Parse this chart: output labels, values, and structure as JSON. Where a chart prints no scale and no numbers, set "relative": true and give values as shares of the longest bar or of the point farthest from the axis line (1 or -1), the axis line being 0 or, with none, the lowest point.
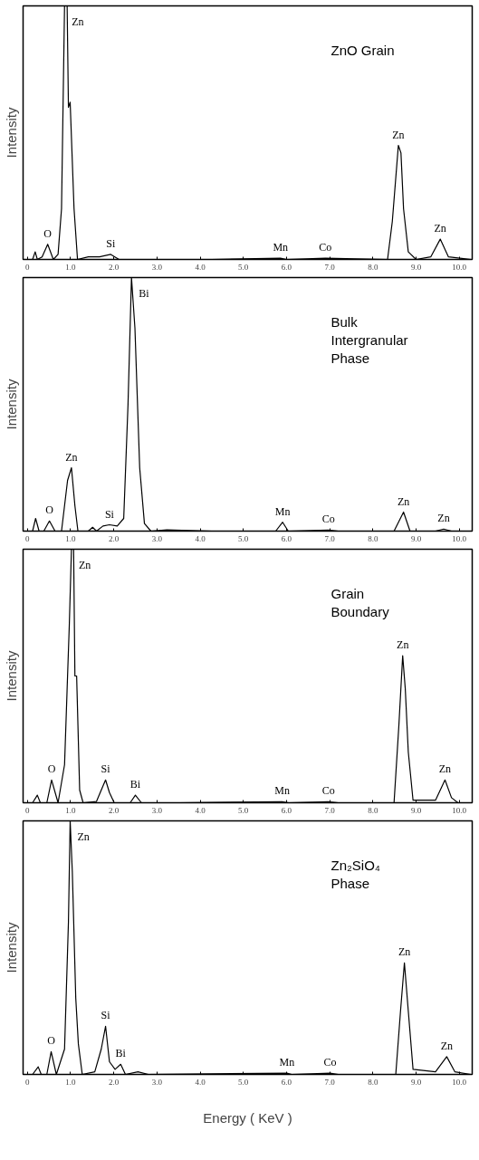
{
  "chart_data": [
    {
      "type": "line",
      "title": "ZnO Grain",
      "ylabel": "Intensity",
      "relative": true,
      "xlim": [
        -0.1,
        10.3
      ],
      "xticks": [
        {
          "value": 0,
          "label": "0"
        },
        {
          "value": 1,
          "label": "1.0"
        },
        {
          "value": 2,
          "label": "2.0"
        },
        {
          "value": 3,
          "label": "3.0"
        },
        {
          "value": 4,
          "label": "4.0"
        },
        {
          "value": 5,
          "label": "5.0"
        },
        {
          "value": 6,
          "label": "6.0"
        },
        {
          "value": 7,
          "label": "7.0"
        },
        {
          "value": 8,
          "label": "8.0"
        },
        {
          "value": 9,
          "label": "9.0"
        },
        {
          "value": 10,
          "label": "10.0"
        }
      ],
      "x": [
        0.12,
        0.18,
        0.23,
        0.34,
        0.47,
        0.6,
        0.71,
        0.79,
        0.86,
        0.92,
        0.95,
        0.99,
        1.08,
        1.16,
        1.41,
        1.67,
        1.93,
        2.12,
        4.27,
        5.86,
        6.0,
        6.9,
        8.34,
        8.45,
        8.59,
        8.65,
        8.71,
        8.82,
        9.0,
        9.34,
        9.56,
        9.75,
        10.27
      ],
      "series": [
        {
          "color": "#000000",
          "values": [
            0,
            0.03,
            0,
            0.01,
            0.06,
            0,
            0.02,
            0.2,
            1,
            1,
            0.6,
            0.62,
            0.2,
            0,
            0.01,
            0.01,
            0.02,
            0,
            0,
            0.005,
            0,
            0.005,
            0,
            0.15,
            0.45,
            0.42,
            0.2,
            0.03,
            0,
            0.01,
            0.08,
            0.01,
            0
          ]
        }
      ],
      "annotations": [
        {
          "text": "O",
          "x": 0.47,
          "y": 0.06
        },
        {
          "text": "Zn",
          "x": 0.86,
          "y": 1
        },
        {
          "text": "Si",
          "x": 1.93,
          "y": 0.02
        },
        {
          "text": "Mn",
          "x": 5.86,
          "y": 0.005
        },
        {
          "text": "Co",
          "x": 6.9,
          "y": 0.005
        },
        {
          "text": "Zn",
          "x": 8.59,
          "y": 0.45
        },
        {
          "text": "Zn",
          "x": 9.56,
          "y": 0.08
        }
      ]
    },
    {
      "type": "line",
      "title": "Bulk\nIntergranular\nPhase",
      "ylabel": "Intensity",
      "relative": true,
      "xlim": [
        -0.1,
        10.3
      ],
      "xticks": [
        {
          "value": 0,
          "label": "0"
        },
        {
          "value": 1,
          "label": "1.0"
        },
        {
          "value": 2,
          "label": "2.0"
        },
        {
          "value": 3,
          "label": "3.0"
        },
        {
          "value": 4,
          "label": "4.0"
        },
        {
          "value": 5,
          "label": "5.0"
        },
        {
          "value": 6,
          "label": "6.0"
        },
        {
          "value": 7,
          "label": "7.0"
        },
        {
          "value": 8,
          "label": "8.0"
        },
        {
          "value": 9,
          "label": "9.0"
        },
        {
          "value": 10,
          "label": "10.0"
        }
      ],
      "x": [
        0.12,
        0.19,
        0.27,
        0.38,
        0.51,
        0.64,
        0.79,
        0.93,
        1.02,
        1.1,
        1.17,
        1.41,
        1.51,
        1.6,
        1.75,
        1.9,
        2.08,
        2.23,
        2.33,
        2.41,
        2.49,
        2.6,
        2.71,
        2.86,
        3.23,
        4.27,
        5.75,
        5.91,
        6.04,
        6.97,
        7.2,
        8.49,
        8.71,
        8.86,
        9.45,
        9.64,
        9.82,
        10.27
      ],
      "series": [
        {
          "color": "#000000",
          "values": [
            0,
            0.05,
            0,
            0,
            0.04,
            0,
            0,
            0.2,
            0.25,
            0.1,
            0,
            0,
            0.015,
            0,
            0.02,
            0.025,
            0.02,
            0.05,
            0.5,
            1,
            0.8,
            0.25,
            0.03,
            0,
            0.005,
            0,
            0,
            0.035,
            0,
            0.004,
            0,
            0,
            0.075,
            0,
            0,
            0.008,
            0,
            0
          ]
        }
      ],
      "annotations": [
        {
          "text": "O",
          "x": 0.51,
          "y": 0.04
        },
        {
          "text": "Zn",
          "x": 1.02,
          "y": 0.25
        },
        {
          "text": "Si",
          "x": 1.9,
          "y": 0.025
        },
        {
          "text": "Bi",
          "x": 2.41,
          "y": 1
        },
        {
          "text": "Mn",
          "x": 5.91,
          "y": 0.035
        },
        {
          "text": "Co",
          "x": 6.97,
          "y": 0.004
        },
        {
          "text": "Zn",
          "x": 8.71,
          "y": 0.075
        },
        {
          "text": "Zn",
          "x": 9.64,
          "y": 0.008
        }
      ]
    },
    {
      "type": "line",
      "title": "Grain\nBoundary",
      "ylabel": "Intensity",
      "relative": true,
      "xlim": [
        -0.1,
        10.3
      ],
      "xticks": [
        {
          "value": 0,
          "label": "0"
        },
        {
          "value": 1,
          "label": "1.0"
        },
        {
          "value": 2,
          "label": "2.0"
        },
        {
          "value": 3,
          "label": "3.0"
        },
        {
          "value": 4,
          "label": "4.0"
        },
        {
          "value": 5,
          "label": "5.0"
        },
        {
          "value": 6,
          "label": "6.0"
        },
        {
          "value": 7,
          "label": "7.0"
        },
        {
          "value": 8,
          "label": "8.0"
        },
        {
          "value": 9,
          "label": "9.0"
        },
        {
          "value": 10,
          "label": "10.0"
        }
      ],
      "x": [
        0.12,
        0.23,
        0.3,
        0.45,
        0.56,
        0.71,
        0.86,
        0.97,
        1.02,
        1.07,
        1.1,
        1.14,
        1.21,
        1.29,
        1.6,
        1.71,
        1.81,
        1.9,
        2.01,
        2.38,
        2.5,
        2.64,
        3.5,
        5.9,
        6.05,
        6.97,
        7.2,
        8.49,
        8.6,
        8.69,
        8.75,
        8.82,
        8.93,
        9.45,
        9.67,
        9.82,
        9.97,
        10.27
      ],
      "series": [
        {
          "color": "#000000",
          "values": [
            0,
            0.03,
            0,
            0,
            0.09,
            0,
            0.15,
            0.7,
            1,
            1,
            0.5,
            0.5,
            0.05,
            0,
            0.005,
            0.05,
            0.09,
            0.04,
            0,
            0,
            0.03,
            0,
            0,
            0.004,
            0,
            0.004,
            0,
            0,
            0.3,
            0.58,
            0.45,
            0.2,
            0.01,
            0.01,
            0.09,
            0.02,
            0,
            0
          ]
        }
      ],
      "annotations": [
        {
          "text": "O",
          "x": 0.56,
          "y": 0.09
        },
        {
          "text": "Zn",
          "x": 1.02,
          "y": 1
        },
        {
          "text": "Si",
          "x": 1.81,
          "y": 0.09
        },
        {
          "text": "Bi",
          "x": 2.5,
          "y": 0.03
        },
        {
          "text": "Mn",
          "x": 5.9,
          "y": 0.004
        },
        {
          "text": "Co",
          "x": 6.97,
          "y": 0.004
        },
        {
          "text": "Zn",
          "x": 8.69,
          "y": 0.58
        },
        {
          "text": "Zn",
          "x": 9.67,
          "y": 0.09
        }
      ]
    },
    {
      "type": "line",
      "title": "Zn₂SiO₄\nPhase",
      "ylabel": "Intensity",
      "xlabel": "Energy ( KeV )",
      "relative": true,
      "xlim": [
        -0.1,
        10.3
      ],
      "xticks": [
        {
          "value": 0,
          "label": "0"
        },
        {
          "value": 1,
          "label": "1.0"
        },
        {
          "value": 2,
          "label": "2.0"
        },
        {
          "value": 3,
          "label": "3.0"
        },
        {
          "value": 4,
          "label": "4.0"
        },
        {
          "value": 5,
          "label": "5.0"
        },
        {
          "value": 6,
          "label": "6.0"
        },
        {
          "value": 7,
          "label": "7.0"
        },
        {
          "value": 8,
          "label": "8.0"
        },
        {
          "value": 9,
          "label": "9.0"
        },
        {
          "value": 10,
          "label": "10.0"
        }
      ],
      "x": [
        0.12,
        0.25,
        0.32,
        0.45,
        0.55,
        0.67,
        0.86,
        0.95,
        0.99,
        1.04,
        1.12,
        1.18,
        1.27,
        1.56,
        1.71,
        1.81,
        1.9,
        2.03,
        2.16,
        2.27,
        2.56,
        2.8,
        6.01,
        6.12,
        7.01,
        7.2,
        8.53,
        8.64,
        8.73,
        8.82,
        8.93,
        9.45,
        9.71,
        9.9,
        10.27
      ],
      "series": [
        {
          "color": "#000000",
          "values": [
            0,
            0.03,
            0,
            0,
            0.09,
            0,
            0.1,
            0.6,
            1,
            0.8,
            0.3,
            0.12,
            0,
            0.01,
            0.1,
            0.19,
            0.05,
            0.02,
            0.04,
            0,
            0.01,
            0,
            0.005,
            0,
            0.005,
            0,
            0,
            0.25,
            0.44,
            0.25,
            0.02,
            0.01,
            0.07,
            0.01,
            0
          ]
        }
      ],
      "annotations": [
        {
          "text": "O",
          "x": 0.55,
          "y": 0.09
        },
        {
          "text": "Zn",
          "x": 0.99,
          "y": 1
        },
        {
          "text": "Si",
          "x": 1.81,
          "y": 0.19
        },
        {
          "text": "Bi",
          "x": 2.16,
          "y": 0.04
        },
        {
          "text": "Mn",
          "x": 6.01,
          "y": 0.005
        },
        {
          "text": "Co",
          "x": 7.01,
          "y": 0.005
        },
        {
          "text": "Zn",
          "x": 8.73,
          "y": 0.44
        },
        {
          "text": "Zn",
          "x": 9.71,
          "y": 0.07
        }
      ]
    }
  ]
}
